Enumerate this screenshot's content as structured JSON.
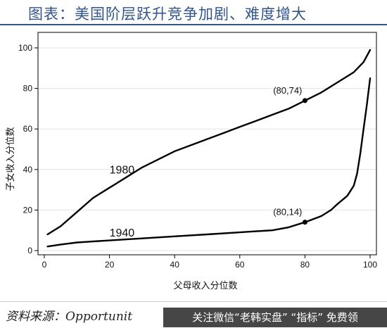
{
  "header": {
    "title": "图表：美国阶层跃升竞争加剧、难度增大"
  },
  "footer": {
    "source": "资料来源：Opportunit",
    "watermark": "关注微信“老韩实盘”",
    "watermark_cta": "“指标” 免费领"
  },
  "chart_data": {
    "type": "line",
    "title": "",
    "xlabel": "父母收入分位数",
    "ylabel": "子女收入分位数",
    "xlim": [
      0,
      100
    ],
    "ylim": [
      0,
      100
    ],
    "xticks": [
      0,
      20,
      40,
      60,
      80,
      100
    ],
    "yticks": [
      0,
      20,
      40,
      60,
      80,
      100
    ],
    "grid": true,
    "legend": "none",
    "series": [
      {
        "name": "1980",
        "x": [
          1,
          5,
          10,
          15,
          20,
          22,
          25,
          30,
          35,
          40,
          45,
          50,
          55,
          60,
          65,
          70,
          75,
          80,
          85,
          90,
          95,
          98,
          100
        ],
        "y": [
          8,
          12,
          19,
          26,
          31,
          33,
          36,
          41,
          45,
          49,
          52,
          55,
          58,
          61,
          64,
          67,
          70,
          74,
          78,
          83,
          88,
          93,
          99
        ]
      },
      {
        "name": "1940",
        "x": [
          1,
          5,
          10,
          15,
          20,
          30,
          40,
          50,
          60,
          65,
          70,
          75,
          80,
          85,
          88,
          90,
          93,
          95,
          96,
          97,
          98,
          99,
          100
        ],
        "y": [
          2,
          3,
          4,
          4.5,
          5,
          6,
          7,
          8,
          9,
          9.5,
          10,
          11.5,
          14,
          17,
          20,
          23,
          27,
          32,
          38,
          48,
          60,
          72,
          85
        ]
      }
    ],
    "annotations": [
      {
        "label": "(80,74)",
        "x": 80,
        "y": 74
      },
      {
        "label": "(80,14)",
        "x": 80,
        "y": 14
      }
    ],
    "series_labels": [
      {
        "text": "1980",
        "x": 20,
        "y": 38
      },
      {
        "text": "1940",
        "x": 20,
        "y": 7
      }
    ],
    "colors": {
      "line": "#000000",
      "grid": "#e3e3e3",
      "title": "#2f5597"
    }
  }
}
